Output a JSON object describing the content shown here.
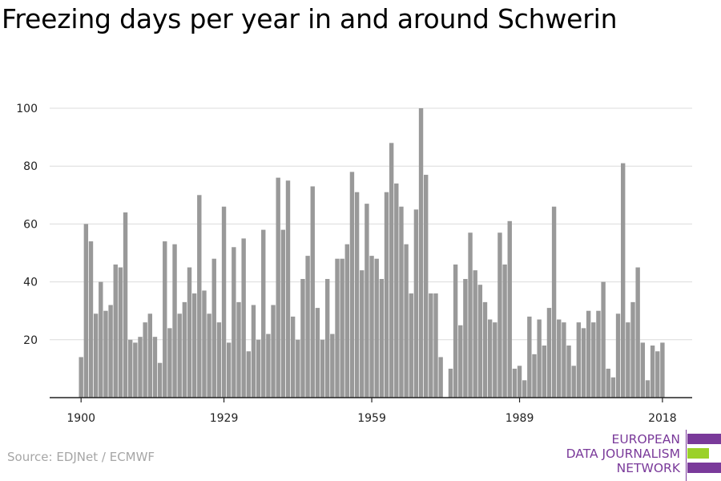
{
  "title": "Freezing days per year in and around Schwerin",
  "source": "Source: EDJNet / ECMWF",
  "logo": {
    "lines": [
      "EUROPEAN",
      "DATA JOURNALISM",
      "NETWORK"
    ],
    "colors": {
      "purple": "#7a3a9a",
      "green": "#9bd12a"
    }
  },
  "chart_data": {
    "type": "bar",
    "title": "Freezing days per year in and around Schwerin",
    "xlabel": "",
    "ylabel": "",
    "start_year": 1900,
    "end_year": 2018,
    "ylim": [
      0,
      100
    ],
    "yticks": [
      20,
      40,
      60,
      80,
      100
    ],
    "xticks": [
      "1900",
      "1929",
      "1959",
      "1989",
      "2018"
    ],
    "grid": true,
    "bar_color": "#999999",
    "values": [
      14,
      60,
      54,
      29,
      40,
      30,
      32,
      46,
      45,
      64,
      20,
      19,
      21,
      26,
      29,
      21,
      12,
      54,
      24,
      53,
      29,
      33,
      45,
      36,
      70,
      37,
      29,
      48,
      26,
      66,
      19,
      52,
      33,
      55,
      16,
      32,
      20,
      58,
      22,
      32,
      76,
      58,
      75,
      28,
      20,
      41,
      49,
      73,
      31,
      20,
      41,
      22,
      48,
      48,
      53,
      78,
      71,
      44,
      67,
      49,
      48,
      41,
      71,
      88,
      74,
      66,
      53,
      36,
      65,
      100,
      77,
      36,
      36,
      14,
      0,
      10,
      46,
      25,
      41,
      57,
      44,
      39,
      33,
      27,
      26,
      57,
      46,
      61,
      10,
      11,
      6,
      28,
      15,
      27,
      18,
      31,
      66,
      27,
      26,
      18,
      11,
      26,
      24,
      30,
      26,
      30,
      40,
      10,
      7,
      29,
      81,
      26,
      33,
      45,
      19,
      6,
      18,
      16,
      19
    ]
  }
}
